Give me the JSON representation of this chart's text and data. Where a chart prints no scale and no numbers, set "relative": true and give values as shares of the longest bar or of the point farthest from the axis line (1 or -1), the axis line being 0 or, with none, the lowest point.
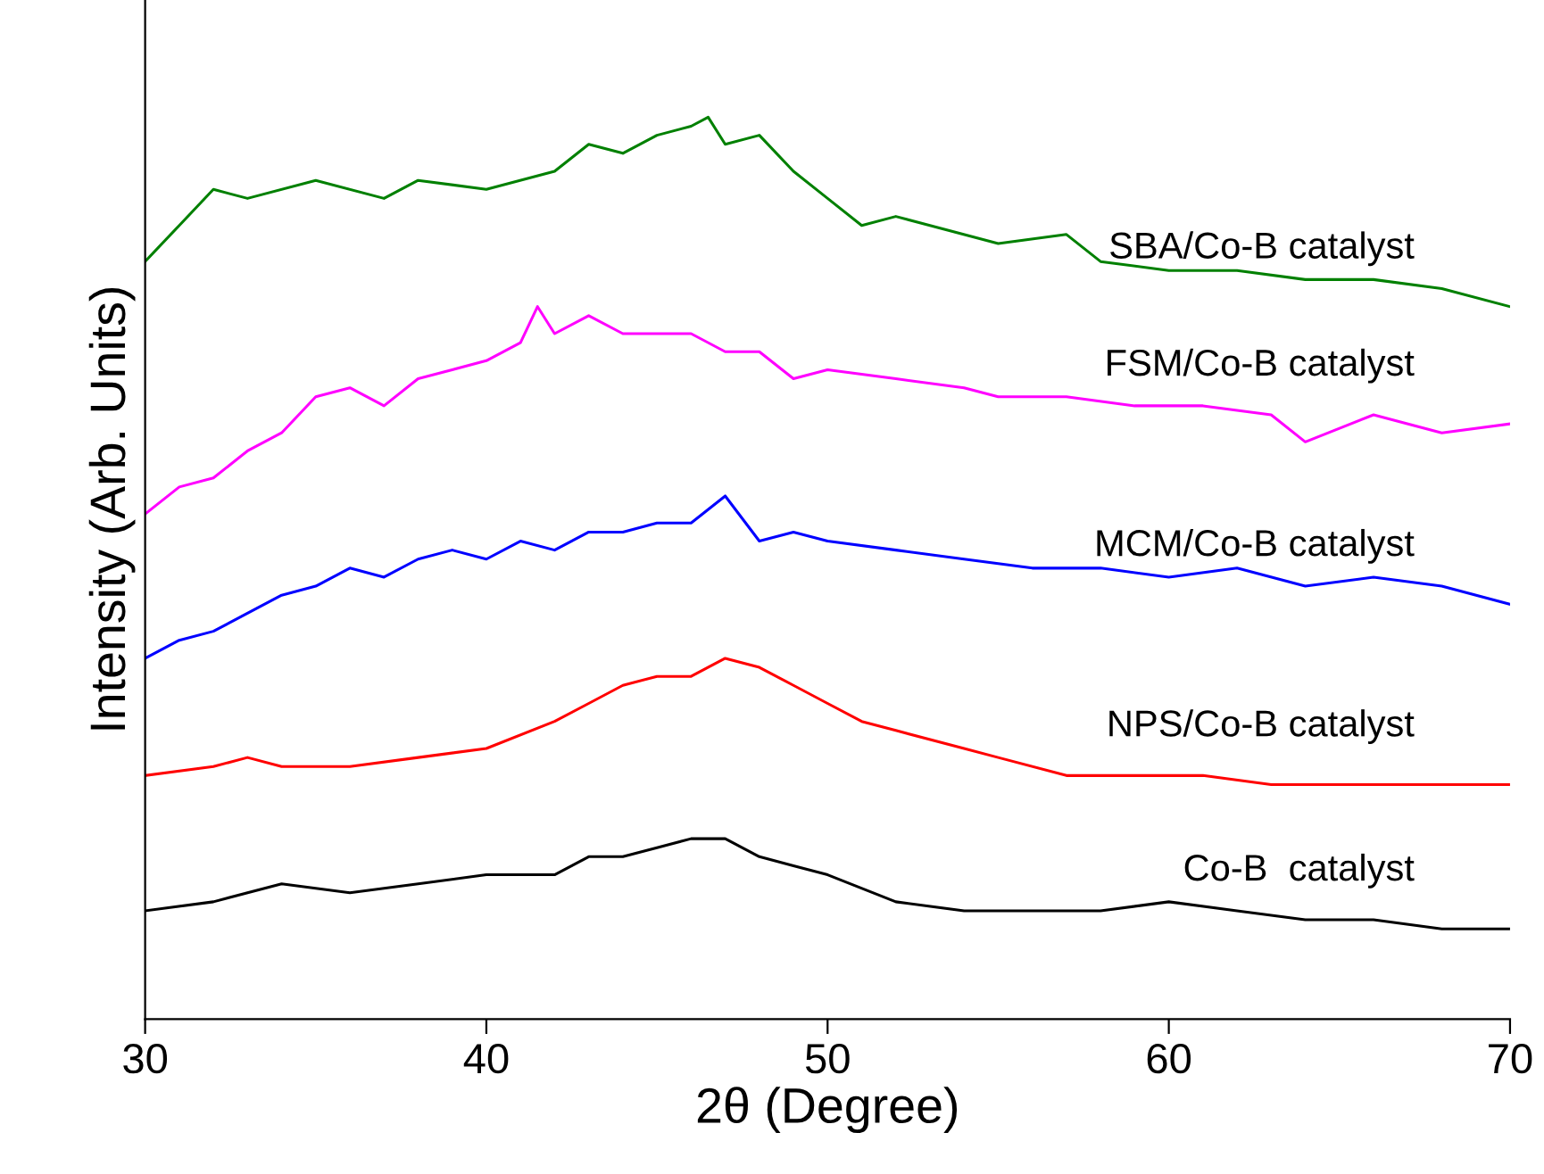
{
  "chart_data": {
    "type": "line",
    "relative": true,
    "xlabel": "2θ (Degree)",
    "ylabel": "Intensity (Arb. Units)",
    "xlim": [
      30,
      70
    ],
    "xticks": [
      30,
      40,
      50,
      60,
      70
    ],
    "legend": false,
    "grid": false,
    "tick_labels": "x",
    "series": [
      {
        "name": "SBA/Co-B catalyst",
        "color": "#008000",
        "x": [
          30,
          31,
          32,
          33,
          35,
          37,
          38,
          40,
          42,
          43,
          44,
          45,
          46,
          46.5,
          47,
          48,
          49,
          50,
          51,
          52,
          53,
          55,
          57,
          58,
          60,
          62,
          64,
          66,
          68,
          70
        ],
        "values": [
          0.84,
          0.88,
          0.92,
          0.91,
          0.93,
          0.91,
          0.93,
          0.92,
          0.94,
          0.97,
          0.96,
          0.98,
          0.99,
          1.0,
          0.97,
          0.98,
          0.94,
          0.91,
          0.88,
          0.89,
          0.88,
          0.86,
          0.87,
          0.84,
          0.83,
          0.83,
          0.82,
          0.82,
          0.81,
          0.79
        ]
      },
      {
        "name": "FSM/Co-B catalyst",
        "color": "#ff00ff",
        "x": [
          30,
          31,
          32,
          33,
          34,
          35,
          36,
          37,
          38,
          39,
          40,
          41,
          41.5,
          42,
          43,
          44,
          45,
          46,
          47,
          48,
          49,
          50,
          52,
          54,
          55,
          57,
          59,
          61,
          63,
          64,
          66,
          68,
          70
        ],
        "values": [
          0.56,
          0.59,
          0.6,
          0.63,
          0.65,
          0.69,
          0.7,
          0.68,
          0.71,
          0.72,
          0.73,
          0.75,
          0.79,
          0.76,
          0.78,
          0.76,
          0.76,
          0.76,
          0.74,
          0.74,
          0.71,
          0.72,
          0.71,
          0.7,
          0.69,
          0.69,
          0.68,
          0.68,
          0.67,
          0.64,
          0.67,
          0.65,
          0.66
        ]
      },
      {
        "name": "MCM/Co-B catalyst",
        "color": "#0000ff",
        "x": [
          30,
          31,
          32,
          33,
          34,
          35,
          36,
          37,
          38,
          39,
          40,
          41,
          42,
          43,
          44,
          45,
          46,
          47,
          48,
          49,
          50,
          52,
          54,
          56,
          58,
          60,
          62,
          64,
          66,
          68,
          70
        ],
        "values": [
          0.4,
          0.42,
          0.43,
          0.45,
          0.47,
          0.48,
          0.5,
          0.49,
          0.51,
          0.52,
          0.51,
          0.53,
          0.52,
          0.54,
          0.54,
          0.55,
          0.55,
          0.58,
          0.53,
          0.54,
          0.53,
          0.52,
          0.51,
          0.5,
          0.5,
          0.49,
          0.5,
          0.48,
          0.49,
          0.48,
          0.46
        ]
      },
      {
        "name": "NPS/Co-B catalyst",
        "color": "#ff0000",
        "x": [
          30,
          32,
          33,
          34,
          36,
          38,
          40,
          42,
          43,
          44,
          45,
          46,
          47,
          48,
          49,
          50,
          51,
          52,
          54,
          55,
          57,
          59,
          61,
          63,
          65,
          67,
          70
        ],
        "values": [
          0.27,
          0.28,
          0.29,
          0.28,
          0.28,
          0.29,
          0.3,
          0.33,
          0.35,
          0.37,
          0.38,
          0.38,
          0.4,
          0.39,
          0.37,
          0.35,
          0.33,
          0.32,
          0.3,
          0.29,
          0.27,
          0.27,
          0.27,
          0.26,
          0.26,
          0.26,
          0.26
        ]
      },
      {
        "name": "Co-B  catalyst",
        "color": "#000000",
        "x": [
          30,
          32,
          34,
          36,
          38,
          40,
          42,
          43,
          44,
          45,
          46,
          47,
          48,
          49,
          50,
          52,
          54,
          56,
          58,
          60,
          62,
          64,
          66,
          68,
          70
        ],
        "values": [
          0.12,
          0.13,
          0.15,
          0.14,
          0.15,
          0.16,
          0.16,
          0.18,
          0.18,
          0.19,
          0.2,
          0.2,
          0.18,
          0.17,
          0.16,
          0.13,
          0.12,
          0.12,
          0.12,
          0.13,
          0.12,
          0.11,
          0.11,
          0.1,
          0.1
        ]
      }
    ]
  }
}
